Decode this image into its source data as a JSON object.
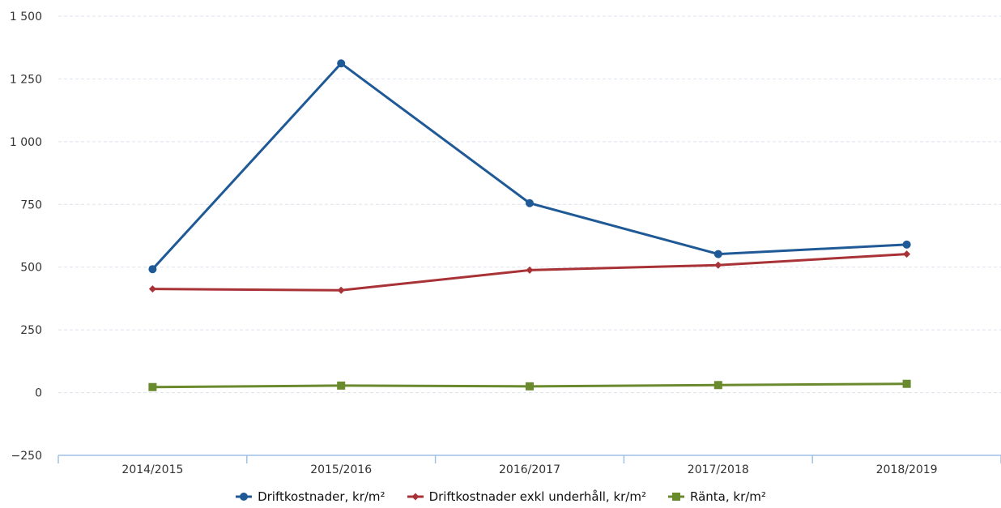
{
  "chart_data": {
    "type": "line",
    "categories": [
      "2014/2015",
      "2015/2016",
      "2016/2017",
      "2017/2018",
      "2018/2019"
    ],
    "ylim": [
      -250,
      1500
    ],
    "yticks": [
      -250,
      0,
      250,
      500,
      750,
      1000,
      1250,
      1500
    ],
    "ytick_labels": [
      "−250",
      "0",
      "250",
      "500",
      "750",
      "1 000",
      "1 250",
      "1 500"
    ],
    "grid": true,
    "legend_position": "bottom",
    "series": [
      {
        "name": "Driftkostnader, kr/m²",
        "color": "#1f5a96",
        "marker": "circle",
        "values": [
          492,
          1312,
          755,
          552,
          590
        ]
      },
      {
        "name": "Driftkostnader exkl underhåll, kr/m²",
        "color": "#a83236",
        "marker": "diamond",
        "values": [
          413,
          408,
          488,
          508,
          552
        ]
      },
      {
        "name": "Ränta, kr/m²",
        "color": "#6a8a2e",
        "marker": "square",
        "values": [
          22,
          28,
          25,
          30,
          35
        ]
      }
    ]
  }
}
